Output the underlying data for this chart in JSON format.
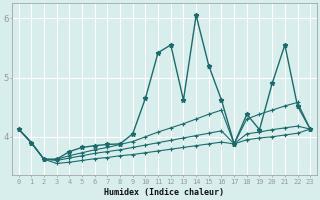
{
  "xlabel": "Humidex (Indice chaleur)",
  "bg_color": "#d8eeed",
  "grid_color": "#ffffff",
  "line_color": "#1a6b6b",
  "xlim": [
    -0.5,
    23.5
  ],
  "ylim": [
    3.35,
    6.25
  ],
  "yticks": [
    4,
    5,
    6
  ],
  "xticks": [
    0,
    1,
    2,
    3,
    4,
    5,
    6,
    7,
    8,
    9,
    10,
    11,
    12,
    13,
    14,
    15,
    16,
    17,
    18,
    19,
    20,
    21,
    22,
    23
  ],
  "main_y": [
    4.13,
    3.9,
    3.62,
    3.62,
    3.75,
    3.82,
    3.85,
    3.87,
    3.88,
    4.05,
    4.65,
    5.42,
    5.55,
    4.62,
    6.05,
    5.2,
    4.62,
    3.88,
    4.38,
    4.12,
    4.9,
    5.55,
    4.52,
    4.13
  ],
  "line1_y": [
    4.13,
    3.9,
    3.62,
    3.62,
    3.68,
    3.73,
    3.78,
    3.82,
    3.87,
    3.92,
    4.0,
    4.08,
    4.15,
    4.22,
    4.3,
    4.38,
    4.45,
    3.88,
    4.3,
    4.38,
    4.45,
    4.52,
    4.58,
    4.13
  ],
  "line2_y": [
    4.13,
    3.9,
    3.62,
    3.6,
    3.64,
    3.68,
    3.72,
    3.75,
    3.78,
    3.82,
    3.86,
    3.9,
    3.94,
    3.98,
    4.02,
    4.06,
    4.1,
    3.88,
    4.05,
    4.08,
    4.12,
    4.15,
    4.18,
    4.13
  ],
  "line3_y": [
    4.13,
    3.9,
    3.62,
    3.55,
    3.57,
    3.6,
    3.63,
    3.65,
    3.68,
    3.7,
    3.73,
    3.76,
    3.79,
    3.82,
    3.85,
    3.88,
    3.91,
    3.88,
    3.95,
    3.98,
    4.0,
    4.03,
    4.06,
    4.13
  ]
}
